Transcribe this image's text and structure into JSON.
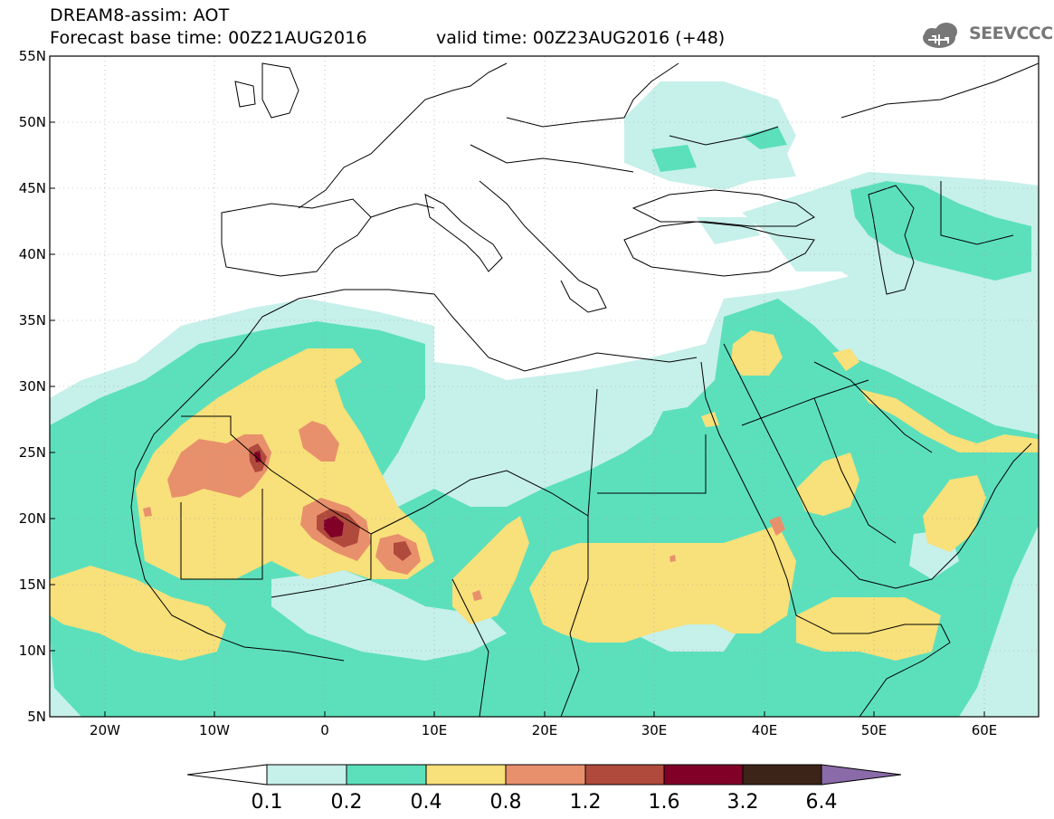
{
  "header": {
    "title": "DREAM8-assim: AOT",
    "base_time": "Forecast base time: 00Z21AUG2016",
    "valid_time": "valid time: 00Z23AUG2016 (+48)",
    "logo_text": "SEEVCCC"
  },
  "axes": {
    "lat_labels": [
      "55N",
      "50N",
      "45N",
      "40N",
      "35N",
      "30N",
      "25N",
      "20N",
      "15N",
      "10N",
      "5N"
    ],
    "lon_labels": [
      "20W",
      "10W",
      "0",
      "10E",
      "20E",
      "30E",
      "40E",
      "50E",
      "60E"
    ]
  },
  "colorbar": {
    "labels": [
      "0.1",
      "0.2",
      "0.4",
      "0.8",
      "1.2",
      "1.6",
      "3.2",
      "6.4"
    ],
    "colors": [
      "#ffffff",
      "#c6f0ea",
      "#5ce0bc",
      "#f8e07a",
      "#e8906c",
      "#b04a3c",
      "#800028",
      "#3c2418",
      "#8a6aa8"
    ]
  },
  "palette": {
    "c1": "#c6f0ea",
    "c2": "#5ce0bc",
    "c3": "#f8e07a",
    "c4": "#e8906c",
    "c5": "#b04a3c",
    "c6": "#800028"
  }
}
